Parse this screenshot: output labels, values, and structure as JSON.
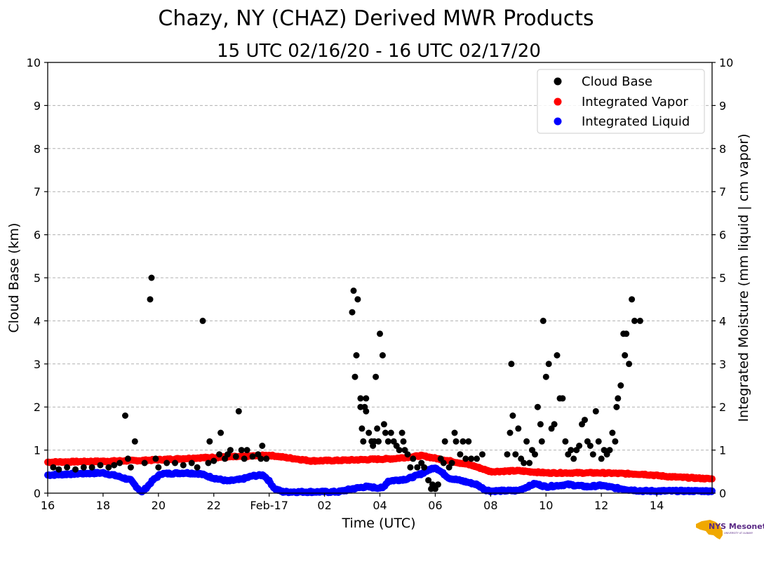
{
  "colors": {
    "cloud_base": "#000000",
    "integrated_vapor": "#ff0000",
    "integrated_liquid": "#0000ff",
    "logo_state": "#f0a800",
    "logo_text": "#5b2a86"
  },
  "logo": {
    "text": "NYS Mesonet",
    "subtext": "UNIVERSITY AT ALBANY"
  },
  "chart_data": {
    "type": "scatter",
    "title": "Chazy, NY (CHAZ) Derived MWR Products",
    "subtitle": "15 UTC 02/16/20 - 16 UTC 02/17/20",
    "xlabel": "Time (UTC)",
    "ylabel": "Cloud Base (km)",
    "ylabel_right": "Integrated Moisture (mm liquid | cm vapor)",
    "xlim": [
      16,
      40
    ],
    "ylim": [
      0,
      10
    ],
    "y_ticks": [
      "0",
      "1",
      "2",
      "3",
      "4",
      "5",
      "6",
      "7",
      "8",
      "9",
      "10"
    ],
    "x_ticks": [
      {
        "x": 16,
        "label": "16"
      },
      {
        "x": 18,
        "label": "18"
      },
      {
        "x": 20,
        "label": "20"
      },
      {
        "x": 22,
        "label": "22"
      },
      {
        "x": 24,
        "label": "Feb-17"
      },
      {
        "x": 26,
        "label": "02"
      },
      {
        "x": 28,
        "label": "04"
      },
      {
        "x": 30,
        "label": "06"
      },
      {
        "x": 32,
        "label": "08"
      },
      {
        "x": 34,
        "label": "10"
      },
      {
        "x": 36,
        "label": "12"
      },
      {
        "x": 38,
        "label": "14"
      }
    ],
    "grid": "horizontal-dashed",
    "legend_position": "top-right",
    "legend": [
      "Cloud Base",
      "Integrated Vapor",
      "Integrated Liquid"
    ],
    "series": [
      {
        "name": "Cloud Base",
        "color": "#000000",
        "points": [
          [
            16.2,
            0.6
          ],
          [
            16.4,
            0.55
          ],
          [
            16.7,
            0.6
          ],
          [
            17.0,
            0.55
          ],
          [
            17.3,
            0.6
          ],
          [
            17.6,
            0.6
          ],
          [
            17.9,
            0.65
          ],
          [
            18.2,
            0.6
          ],
          [
            18.4,
            0.65
          ],
          [
            18.6,
            0.7
          ],
          [
            18.8,
            1.8
          ],
          [
            18.9,
            0.8
          ],
          [
            19.0,
            0.6
          ],
          [
            19.15,
            1.2
          ],
          [
            19.5,
            0.7
          ],
          [
            19.7,
            4.5
          ],
          [
            19.75,
            5.0
          ],
          [
            19.9,
            0.8
          ],
          [
            20.0,
            0.6
          ],
          [
            20.3,
            0.7
          ],
          [
            20.6,
            0.7
          ],
          [
            20.9,
            0.65
          ],
          [
            21.2,
            0.7
          ],
          [
            21.4,
            0.6
          ],
          [
            21.6,
            4.0
          ],
          [
            21.8,
            0.7
          ],
          [
            21.85,
            1.2
          ],
          [
            22.0,
            0.75
          ],
          [
            22.2,
            0.9
          ],
          [
            22.25,
            1.4
          ],
          [
            22.4,
            0.8
          ],
          [
            22.5,
            0.9
          ],
          [
            22.6,
            1.0
          ],
          [
            22.8,
            0.85
          ],
          [
            22.9,
            1.9
          ],
          [
            23.0,
            1.0
          ],
          [
            23.1,
            0.8
          ],
          [
            23.2,
            1.0
          ],
          [
            23.4,
            0.85
          ],
          [
            23.6,
            0.9
          ],
          [
            23.7,
            0.8
          ],
          [
            23.75,
            1.1
          ],
          [
            23.9,
            0.8
          ],
          [
            27.0,
            4.2
          ],
          [
            27.05,
            4.7
          ],
          [
            27.1,
            2.7
          ],
          [
            27.15,
            3.2
          ],
          [
            27.2,
            4.5
          ],
          [
            27.3,
            2.0
          ],
          [
            27.3,
            2.2
          ],
          [
            27.35,
            1.5
          ],
          [
            27.4,
            1.2
          ],
          [
            27.45,
            2.0
          ],
          [
            27.5,
            2.2
          ],
          [
            27.5,
            1.9
          ],
          [
            27.6,
            1.4
          ],
          [
            27.7,
            1.2
          ],
          [
            27.75,
            1.1
          ],
          [
            27.8,
            1.2
          ],
          [
            27.85,
            2.7
          ],
          [
            27.9,
            1.5
          ],
          [
            27.95,
            1.2
          ],
          [
            28.0,
            3.7
          ],
          [
            28.1,
            3.2
          ],
          [
            28.15,
            1.6
          ],
          [
            28.2,
            1.4
          ],
          [
            28.3,
            1.2
          ],
          [
            28.4,
            1.4
          ],
          [
            28.5,
            1.2
          ],
          [
            28.6,
            1.1
          ],
          [
            28.7,
            1.0
          ],
          [
            28.8,
            1.4
          ],
          [
            28.85,
            1.2
          ],
          [
            28.9,
            1.0
          ],
          [
            29.0,
            0.9
          ],
          [
            29.1,
            0.6
          ],
          [
            29.2,
            0.8
          ],
          [
            29.35,
            0.6
          ],
          [
            29.5,
            0.7
          ],
          [
            29.6,
            0.6
          ],
          [
            29.75,
            0.3
          ],
          [
            29.85,
            0.1
          ],
          [
            29.9,
            0.2
          ],
          [
            30.0,
            0.1
          ],
          [
            30.1,
            0.2
          ],
          [
            30.2,
            0.8
          ],
          [
            30.3,
            0.7
          ],
          [
            30.35,
            1.2
          ],
          [
            30.5,
            0.6
          ],
          [
            30.6,
            0.7
          ],
          [
            30.7,
            1.4
          ],
          [
            30.75,
            1.2
          ],
          [
            30.9,
            0.9
          ],
          [
            31.0,
            1.2
          ],
          [
            31.1,
            0.8
          ],
          [
            31.2,
            1.2
          ],
          [
            31.3,
            0.8
          ],
          [
            31.5,
            0.8
          ],
          [
            31.7,
            0.9
          ],
          [
            32.6,
            0.9
          ],
          [
            32.7,
            1.4
          ],
          [
            32.75,
            3.0
          ],
          [
            32.8,
            1.8
          ],
          [
            32.9,
            0.9
          ],
          [
            33.0,
            1.5
          ],
          [
            33.1,
            0.8
          ],
          [
            33.2,
            0.7
          ],
          [
            33.3,
            1.2
          ],
          [
            33.4,
            0.7
          ],
          [
            33.5,
            1.0
          ],
          [
            33.6,
            0.9
          ],
          [
            33.7,
            2.0
          ],
          [
            33.8,
            1.6
          ],
          [
            33.85,
            1.2
          ],
          [
            33.9,
            4.0
          ],
          [
            34.0,
            2.7
          ],
          [
            34.1,
            3.0
          ],
          [
            34.2,
            1.5
          ],
          [
            34.3,
            1.6
          ],
          [
            34.4,
            3.2
          ],
          [
            34.5,
            2.2
          ],
          [
            34.6,
            2.2
          ],
          [
            34.7,
            1.2
          ],
          [
            34.8,
            0.9
          ],
          [
            34.9,
            1.0
          ],
          [
            35.0,
            0.8
          ],
          [
            35.1,
            1.0
          ],
          [
            35.2,
            1.1
          ],
          [
            35.3,
            1.6
          ],
          [
            35.4,
            1.7
          ],
          [
            35.5,
            1.2
          ],
          [
            35.6,
            1.1
          ],
          [
            35.7,
            0.9
          ],
          [
            35.8,
            1.9
          ],
          [
            35.9,
            1.2
          ],
          [
            36.0,
            0.8
          ],
          [
            36.1,
            1.0
          ],
          [
            36.2,
            0.9
          ],
          [
            36.3,
            1.0
          ],
          [
            36.4,
            1.4
          ],
          [
            36.5,
            1.2
          ],
          [
            36.55,
            2.0
          ],
          [
            36.6,
            2.2
          ],
          [
            36.7,
            2.5
          ],
          [
            36.8,
            3.7
          ],
          [
            36.85,
            3.2
          ],
          [
            36.9,
            3.7
          ],
          [
            37.0,
            3.0
          ],
          [
            37.1,
            4.5
          ],
          [
            37.2,
            4.0
          ],
          [
            37.4,
            4.0
          ]
        ]
      },
      {
        "name": "Integrated Vapor",
        "color": "#ff0000",
        "points": [
          [
            16.0,
            0.72
          ],
          [
            18.0,
            0.74
          ],
          [
            19.5,
            0.76
          ],
          [
            21.5,
            0.82
          ],
          [
            23.0,
            0.85
          ],
          [
            24.0,
            0.88
          ],
          [
            25.5,
            0.75
          ],
          [
            26.5,
            0.76
          ],
          [
            28.5,
            0.8
          ],
          [
            29.5,
            0.87
          ],
          [
            30.5,
            0.75
          ],
          [
            31.3,
            0.65
          ],
          [
            32.0,
            0.5
          ],
          [
            33.0,
            0.52
          ],
          [
            34.0,
            0.47
          ],
          [
            36.0,
            0.47
          ],
          [
            37.5,
            0.44
          ],
          [
            38.5,
            0.38
          ],
          [
            40.0,
            0.33
          ]
        ]
      },
      {
        "name": "Integrated Liquid",
        "color": "#0000ff",
        "points": [
          [
            16.0,
            0.42
          ],
          [
            17.0,
            0.45
          ],
          [
            18.0,
            0.47
          ],
          [
            18.5,
            0.4
          ],
          [
            19.0,
            0.3
          ],
          [
            19.2,
            0.15
          ],
          [
            19.4,
            0.02
          ],
          [
            19.6,
            0.15
          ],
          [
            19.8,
            0.3
          ],
          [
            20.1,
            0.45
          ],
          [
            21.0,
            0.47
          ],
          [
            21.5,
            0.45
          ],
          [
            22.0,
            0.35
          ],
          [
            22.5,
            0.28
          ],
          [
            23.0,
            0.32
          ],
          [
            23.4,
            0.4
          ],
          [
            23.8,
            0.42
          ],
          [
            24.0,
            0.28
          ],
          [
            24.2,
            0.1
          ],
          [
            24.5,
            0.03
          ],
          [
            26.5,
            0.03
          ],
          [
            27.0,
            0.1
          ],
          [
            27.5,
            0.15
          ],
          [
            27.8,
            0.13
          ],
          [
            28.1,
            0.12
          ],
          [
            28.3,
            0.28
          ],
          [
            29.0,
            0.33
          ],
          [
            29.5,
            0.45
          ],
          [
            29.8,
            0.55
          ],
          [
            30.0,
            0.6
          ],
          [
            30.2,
            0.5
          ],
          [
            30.5,
            0.35
          ],
          [
            31.0,
            0.28
          ],
          [
            31.5,
            0.2
          ],
          [
            31.8,
            0.08
          ],
          [
            32.0,
            0.05
          ],
          [
            33.0,
            0.06
          ],
          [
            33.6,
            0.22
          ],
          [
            34.0,
            0.15
          ],
          [
            34.8,
            0.2
          ],
          [
            35.5,
            0.15
          ],
          [
            36.0,
            0.18
          ],
          [
            36.5,
            0.12
          ],
          [
            37.0,
            0.08
          ],
          [
            37.5,
            0.05
          ],
          [
            38.5,
            0.05
          ],
          [
            39.5,
            0.05
          ],
          [
            40.0,
            0.05
          ]
        ]
      }
    ]
  }
}
